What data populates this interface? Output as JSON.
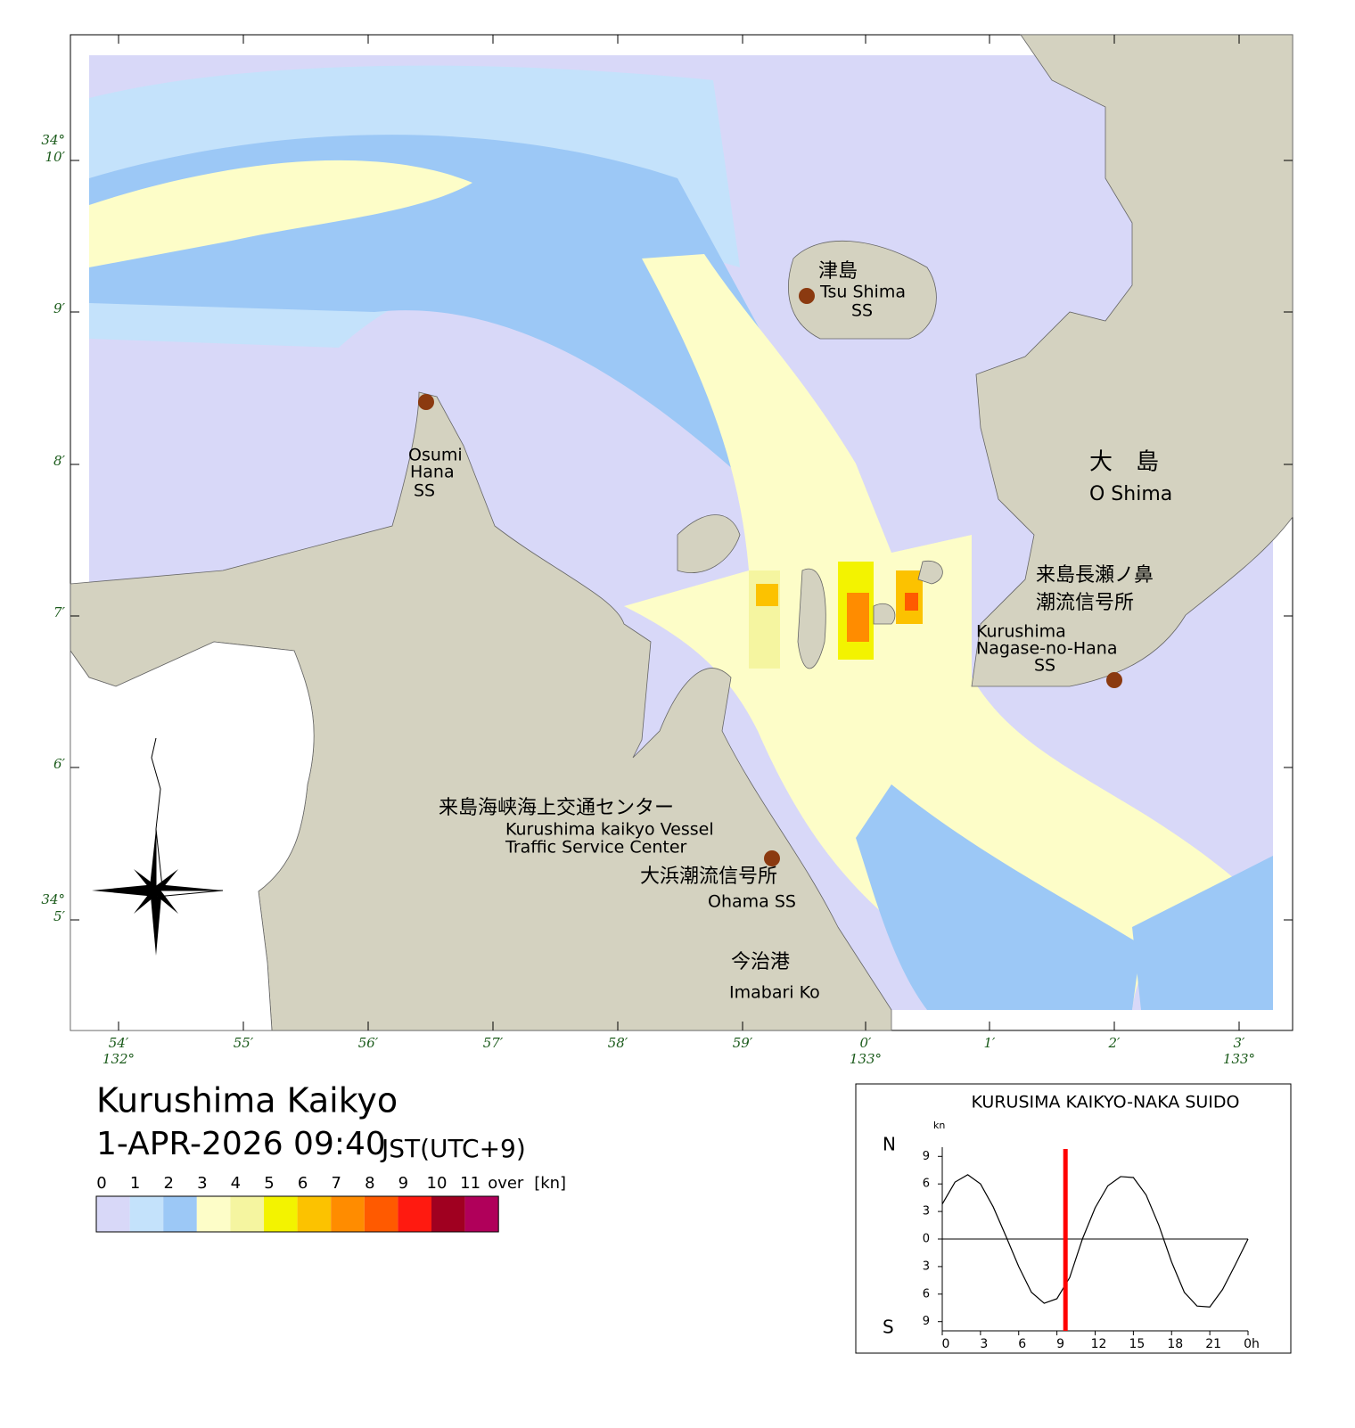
{
  "map": {
    "title": "Kurushima Kaikyo",
    "datetime": "1-APR-2026 09:40",
    "timezone": "JST(UTC+9)",
    "lon_ticks": [
      {
        "minute": "54′",
        "degree": "132°"
      },
      {
        "minute": "55′"
      },
      {
        "minute": "56′"
      },
      {
        "minute": "57′"
      },
      {
        "minute": "58′"
      },
      {
        "minute": "59′"
      },
      {
        "minute": "0′",
        "degree": "133°"
      },
      {
        "minute": "1′"
      },
      {
        "minute": "2′"
      },
      {
        "minute": "3′",
        "degree": "133°"
      }
    ],
    "lat_ticks": [
      {
        "minute": "10′",
        "degree": "34°"
      },
      {
        "minute": "9′"
      },
      {
        "minute": "8′"
      },
      {
        "minute": "7′"
      },
      {
        "minute": "6′"
      },
      {
        "minute": "5′",
        "degree": "34°"
      }
    ],
    "places": {
      "tsushima_ja": "津島",
      "tsushima_en": "Tsu Shima",
      "tsushima_ss": "SS",
      "osumi_1": "Osumi",
      "osumi_2": "Hana",
      "osumi_3": "SS",
      "oshima_ja": "大　島",
      "oshima_en": "O Shima",
      "nagase_ja_1": "来島長瀬ノ鼻",
      "nagase_ja_2": "潮流信号所",
      "nagase_en_1": "Kurushima",
      "nagase_en_2": "Nagase-no-Hana",
      "nagase_en_3": "SS",
      "center_ja": "来島海峡海上交通センター",
      "center_en_1": "Kurushima kaikyo Vessel",
      "center_en_2": "Traffic Service Center",
      "ohama_ja": "大浜潮流信号所",
      "ohama_en": "Ohama SS",
      "imabari_ja": "今治港",
      "imabari_en": "Imabari Ko"
    },
    "legend": {
      "labels": [
        "0",
        "1",
        "2",
        "3",
        "4",
        "5",
        "6",
        "7",
        "8",
        "9",
        "10",
        "11",
        "over",
        "[kn]"
      ],
      "colors": [
        "#d8d8f8",
        "#c4e2fb",
        "#9cc8f6",
        "#fdfdc8",
        "#f5f5a0",
        "#f3f300",
        "#fcc200",
        "#ff8c00",
        "#ff5a00",
        "#ff1a10",
        "#a00020",
        "#b0005a"
      ]
    }
  },
  "chart_data": {
    "type": "line",
    "title": "KURUSIMA KAIKYO-NAKA SUIDO",
    "y_unit": "kn",
    "north_label": "N",
    "south_label": "S",
    "x": [
      0,
      1,
      2,
      3,
      4,
      5,
      6,
      7,
      8,
      9,
      10,
      11,
      12,
      13,
      14,
      15,
      16,
      17,
      18,
      19,
      20,
      21,
      22,
      23,
      24
    ],
    "series": [
      {
        "color": "#000000",
        "values": [
          3.8,
          6.2,
          7.0,
          6.0,
          3.5,
          0.3,
          -3.0,
          -5.8,
          -7.0,
          -6.5,
          -4.2,
          0,
          3.4,
          5.8,
          6.8,
          6.7,
          4.8,
          1.5,
          -2.5,
          -5.8,
          -7.3,
          -7.4,
          -5.5,
          -2.8,
          0
        ]
      }
    ],
    "current_time": 9.67,
    "current_color": "#ff0000",
    "xlim": [
      0,
      24
    ],
    "ylim": [
      -10,
      10
    ],
    "xticks": [
      0,
      3,
      6,
      9,
      12,
      15,
      18,
      21,
      {
        "value": 24,
        "label": "0h"
      }
    ],
    "yticks": [
      9,
      6,
      3,
      0,
      {
        "value": -3,
        "label": "3"
      },
      {
        "value": -6,
        "label": "6"
      },
      {
        "value": -9,
        "label": "9"
      }
    ]
  }
}
